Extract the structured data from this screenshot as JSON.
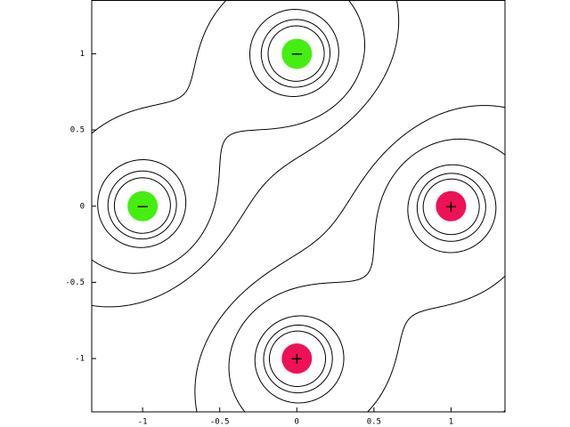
{
  "chart_data": {
    "type": "contour",
    "charges": [
      {
        "x": 1,
        "y": 0,
        "q": 1,
        "label": "+",
        "color": "#ee1155"
      },
      {
        "x": 0,
        "y": -1,
        "q": 1,
        "label": "+",
        "color": "#ee1155"
      },
      {
        "x": -1,
        "y": 0,
        "q": -1,
        "label": "−",
        "color": "#44ee11"
      },
      {
        "x": 0,
        "y": 1,
        "q": -1,
        "label": "−",
        "color": "#44ee11"
      }
    ],
    "levels": [
      -5,
      -4,
      -3,
      -1.5,
      -0.7,
      0.7,
      1.5,
      3,
      4,
      5
    ],
    "xlim": [
      -1.33,
      1.35
    ],
    "ylim": [
      -1.35,
      1.35
    ],
    "xticks": [
      -1,
      -0.5,
      0,
      0.5,
      1
    ],
    "yticks": [
      -1,
      -0.5,
      0,
      0.5,
      1
    ]
  }
}
